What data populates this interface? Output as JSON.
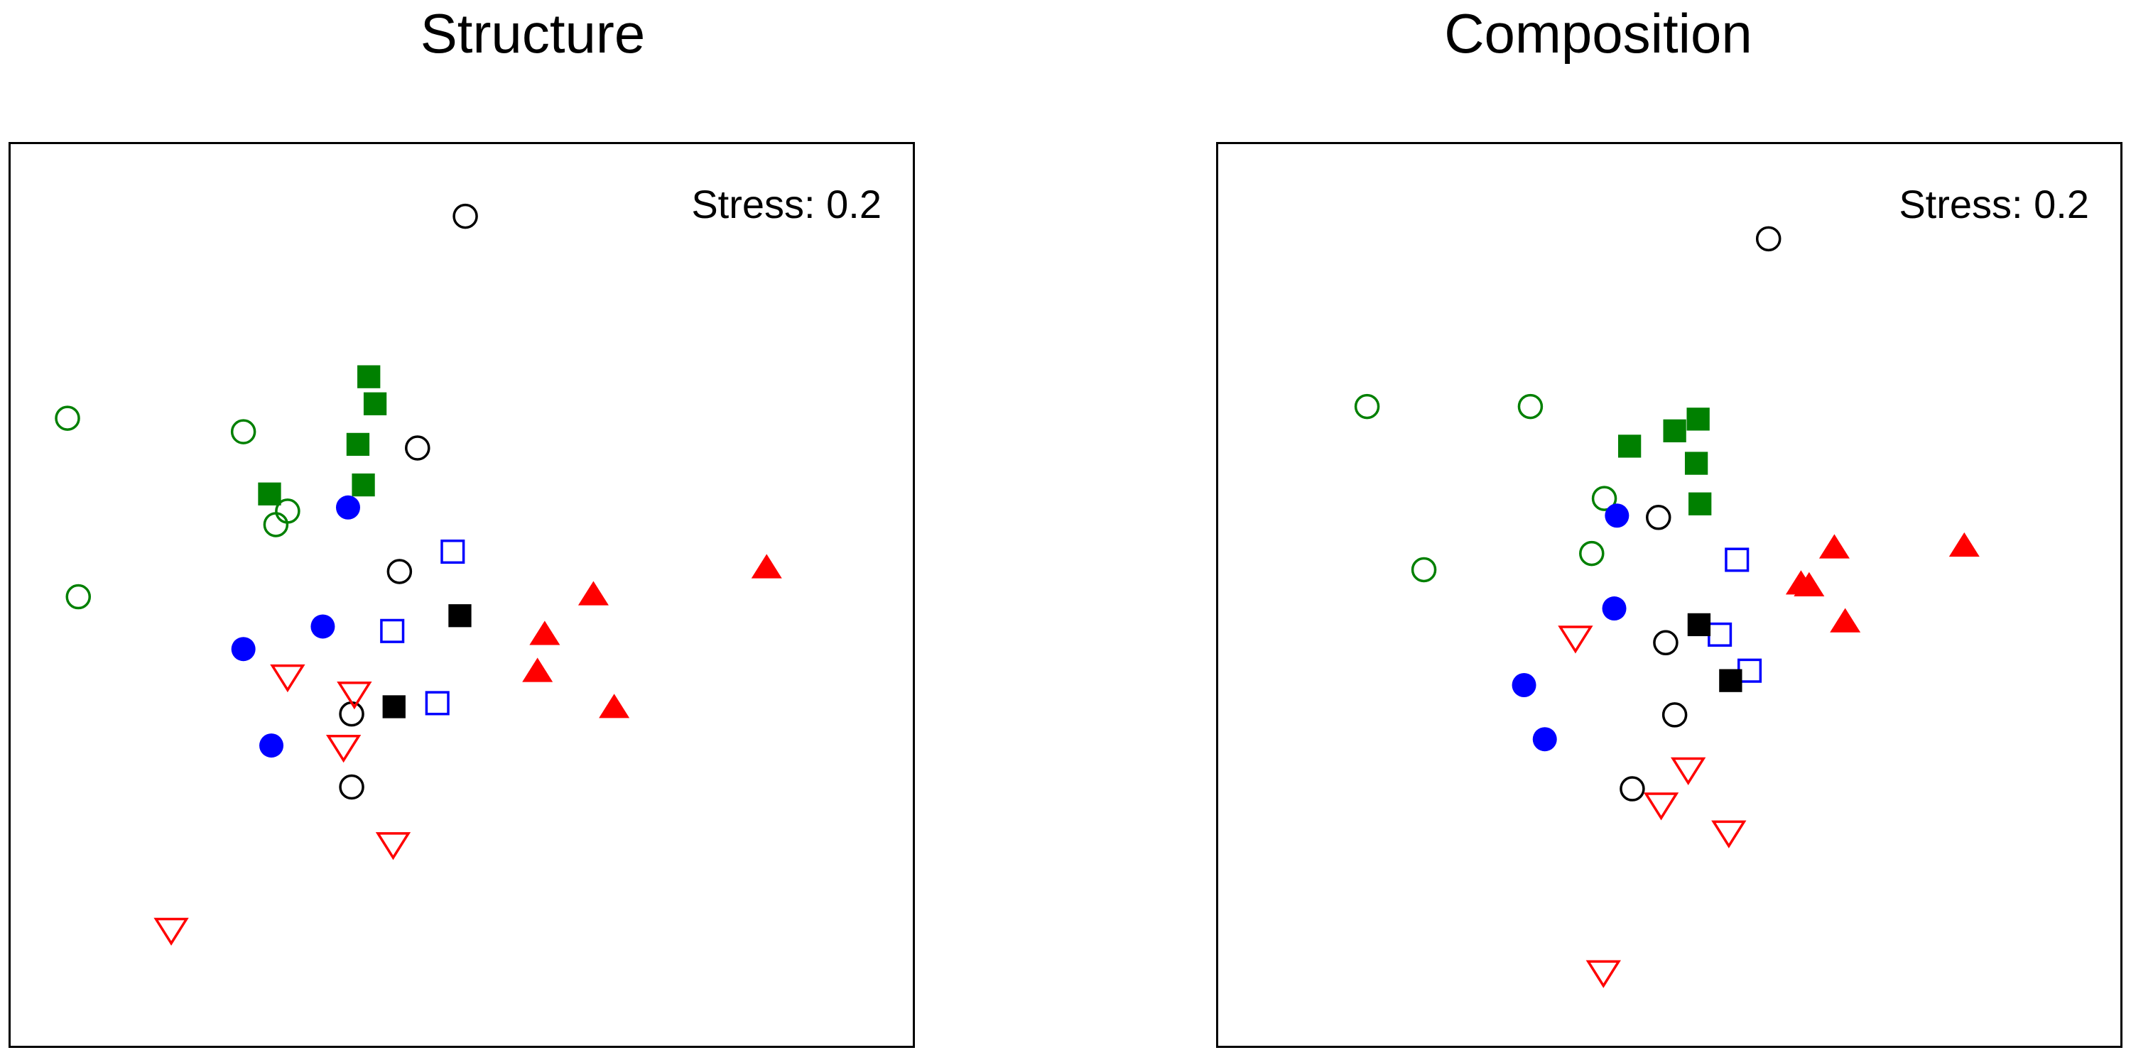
{
  "colors": {
    "green": "#008000",
    "blue": "#0000ff",
    "red": "#ff0000",
    "black": "#000000"
  },
  "marker_styles": [
    {
      "id": "green-open-circle",
      "shape": "circle",
      "filled": false,
      "color": "#008000"
    },
    {
      "id": "green-filled-square",
      "shape": "square",
      "filled": true,
      "color": "#008000"
    },
    {
      "id": "blue-filled-circle",
      "shape": "circle",
      "filled": true,
      "color": "#0000ff"
    },
    {
      "id": "blue-open-square",
      "shape": "square",
      "filled": false,
      "color": "#0000ff"
    },
    {
      "id": "black-open-circle",
      "shape": "circle",
      "filled": false,
      "color": "#000000"
    },
    {
      "id": "black-filled-square",
      "shape": "square",
      "filled": true,
      "color": "#000000"
    },
    {
      "id": "red-filled-triangle-up",
      "shape": "triangle-up",
      "filled": true,
      "color": "#ff0000"
    },
    {
      "id": "red-open-triangle-down",
      "shape": "triangle-down",
      "filled": false,
      "color": "#ff0000"
    }
  ],
  "chart_data": [
    {
      "type": "scatter",
      "title": "Structure",
      "annotation": "Stress: 0.2",
      "xlabel": "",
      "ylabel": "",
      "xlim": [
        0,
        100
      ],
      "ylim": [
        0,
        100
      ],
      "axes_ticks": false,
      "grid": false,
      "series": [
        {
          "style": "black-open-circle",
          "points": [
            [
              50.4,
              92.0
            ],
            [
              45.1,
              66.3
            ],
            [
              43.1,
              52.6
            ],
            [
              37.8,
              36.8
            ],
            [
              37.8,
              28.7
            ]
          ]
        },
        {
          "style": "green-open-circle",
          "points": [
            [
              6.3,
              69.6
            ],
            [
              25.8,
              68.1
            ],
            [
              30.7,
              59.3
            ],
            [
              29.4,
              57.8
            ],
            [
              7.5,
              49.8
            ]
          ]
        },
        {
          "style": "green-filled-square",
          "points": [
            [
              39.7,
              74.2
            ],
            [
              40.4,
              71.2
            ],
            [
              38.5,
              66.7
            ],
            [
              28.7,
              61.2
            ],
            [
              39.1,
              62.2
            ]
          ]
        },
        {
          "style": "blue-filled-circle",
          "points": [
            [
              37.4,
              59.7
            ],
            [
              34.6,
              46.5
            ],
            [
              25.8,
              44.0
            ],
            [
              28.9,
              33.3
            ]
          ]
        },
        {
          "style": "blue-open-square",
          "points": [
            [
              49.0,
              54.8
            ],
            [
              42.3,
              46.0
            ],
            [
              47.3,
              38.0
            ]
          ]
        },
        {
          "style": "black-filled-square",
          "points": [
            [
              49.8,
              47.7
            ],
            [
              42.5,
              37.6
            ]
          ]
        },
        {
          "style": "red-filled-triangle-up",
          "points": [
            [
              83.8,
              53.0
            ],
            [
              64.6,
              50.0
            ],
            [
              59.2,
              45.6
            ],
            [
              58.4,
              41.5
            ],
            [
              66.9,
              37.5
            ]
          ]
        },
        {
          "style": "red-open-triangle-down",
          "points": [
            [
              30.7,
              41.0
            ],
            [
              38.1,
              39.1
            ],
            [
              36.9,
              33.2
            ],
            [
              42.4,
              22.4
            ],
            [
              17.8,
              12.9
            ]
          ]
        }
      ]
    },
    {
      "type": "scatter",
      "title": "Composition",
      "annotation": "Stress: 0.2",
      "xlabel": "",
      "ylabel": "",
      "xlim": [
        0,
        100
      ],
      "ylim": [
        0,
        100
      ],
      "axes_ticks": false,
      "grid": false,
      "series": [
        {
          "style": "black-open-circle",
          "points": [
            [
              61.0,
              89.5
            ],
            [
              48.8,
              58.6
            ],
            [
              49.6,
              44.7
            ],
            [
              50.6,
              36.7
            ],
            [
              45.9,
              28.5
            ]
          ]
        },
        {
          "style": "green-open-circle",
          "points": [
            [
              16.5,
              70.9
            ],
            [
              34.6,
              70.9
            ],
            [
              42.8,
              60.7
            ],
            [
              41.4,
              54.6
            ],
            [
              22.8,
              52.8
            ]
          ]
        },
        {
          "style": "green-filled-square",
          "points": [
            [
              53.2,
              69.5
            ],
            [
              50.6,
              68.2
            ],
            [
              45.6,
              66.5
            ],
            [
              53.0,
              64.6
            ],
            [
              53.4,
              60.1
            ]
          ]
        },
        {
          "style": "blue-filled-circle",
          "points": [
            [
              44.2,
              58.8
            ],
            [
              43.9,
              48.5
            ],
            [
              33.9,
              40.0
            ],
            [
              36.2,
              34.0
            ]
          ]
        },
        {
          "style": "blue-open-square",
          "points": [
            [
              57.5,
              53.9
            ],
            [
              55.6,
              45.6
            ],
            [
              58.9,
              41.6
            ]
          ]
        },
        {
          "style": "black-filled-square",
          "points": [
            [
              53.3,
              46.7
            ],
            [
              56.8,
              40.5
            ]
          ]
        },
        {
          "style": "red-filled-triangle-up",
          "points": [
            [
              82.7,
              55.4
            ],
            [
              68.3,
              55.2
            ],
            [
              64.6,
              51.2
            ],
            [
              65.5,
              51.0
            ],
            [
              69.5,
              47.0
            ]
          ]
        },
        {
          "style": "red-open-triangle-down",
          "points": [
            [
              39.6,
              45.3
            ],
            [
              52.1,
              30.7
            ],
            [
              49.1,
              26.8
            ],
            [
              56.6,
              23.7
            ],
            [
              42.7,
              8.2
            ]
          ]
        }
      ]
    }
  ]
}
